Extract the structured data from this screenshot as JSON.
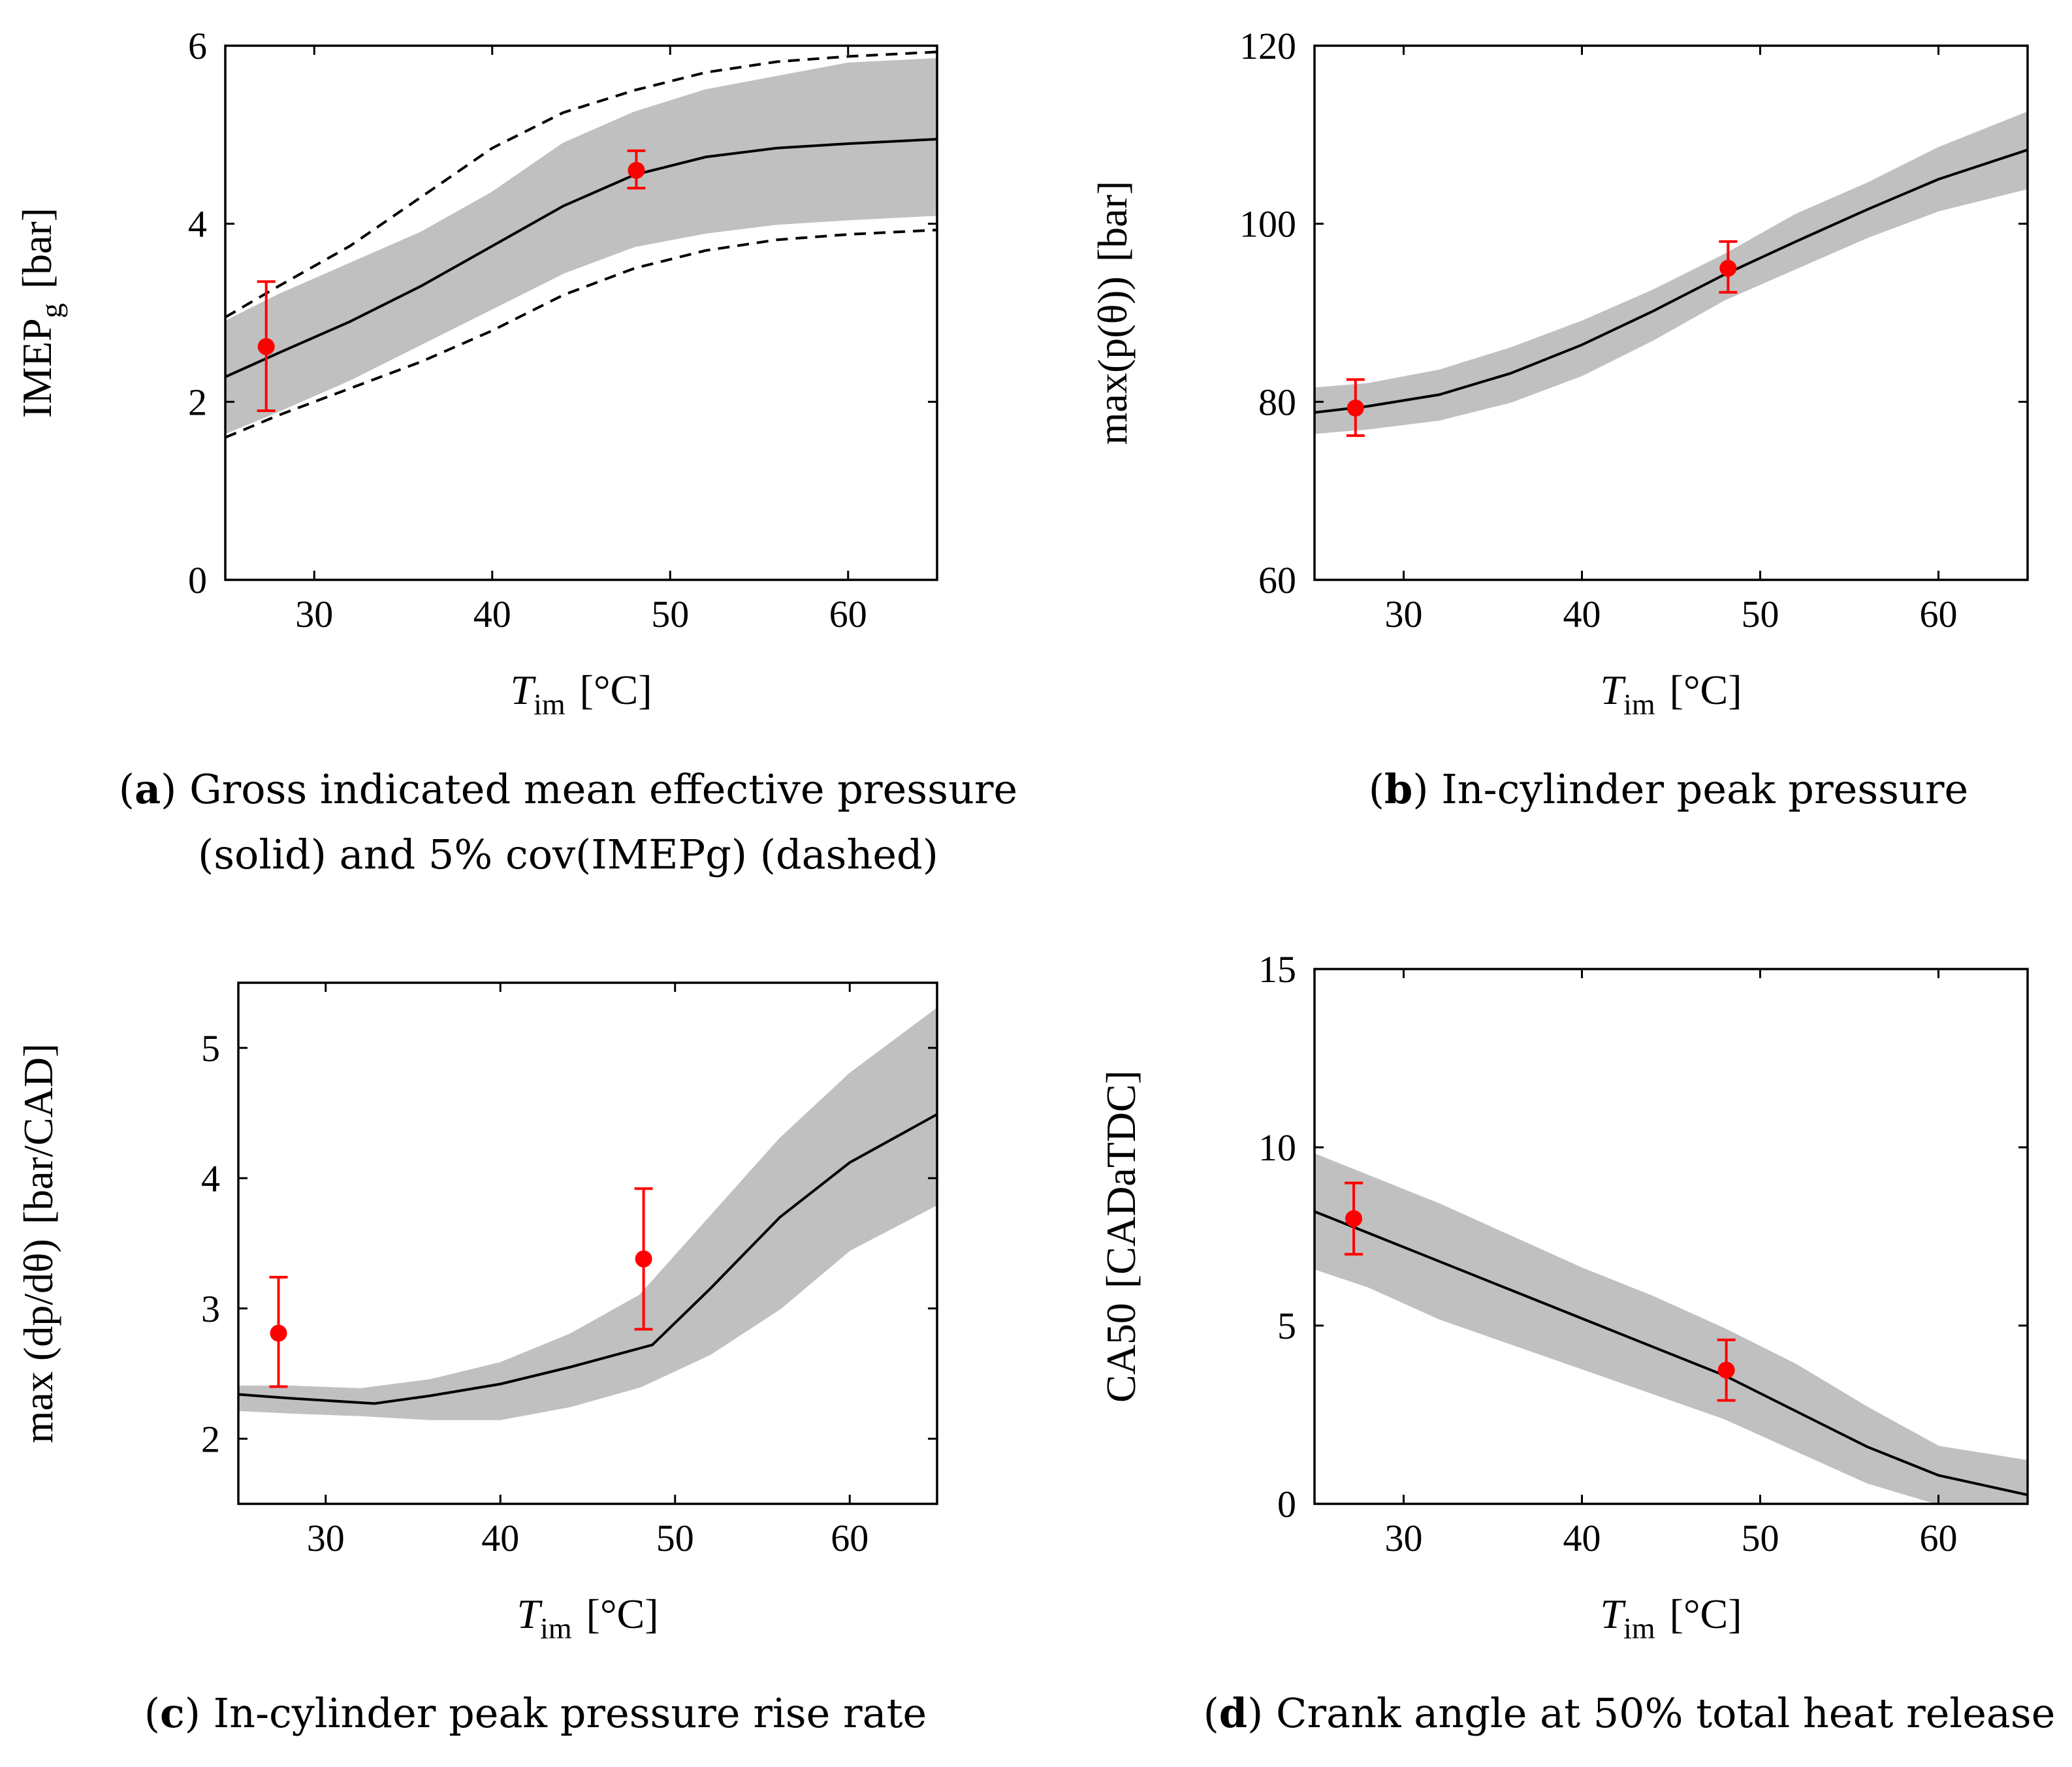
{
  "colors": {
    "band": "#c0c0c0",
    "model": "#000000",
    "measurement": "#ff0000"
  },
  "chart_data": [
    {
      "id": "a",
      "type": "line",
      "caption_letter": "a",
      "caption_lines": [
        "Gross indicated mean effective pressure",
        "(solid) and 5% cov(IMEP_g) (dashed)"
      ],
      "caption_display": [
        "Gross indicated mean effective pressure",
        "(solid) and 5% cov(IMEPg) (dashed)"
      ],
      "xlabel": "T_im [°C]",
      "xlabel_display": {
        "main": "T",
        "sub": "im",
        "unit": "[°C]"
      },
      "ylabel": "IMEP_g [bar]",
      "ylabel_display": {
        "main": "IMEP",
        "sub": "g",
        "unit": "[bar]"
      },
      "xlim": [
        25,
        65
      ],
      "ylim": [
        0,
        6
      ],
      "xticks": [
        30,
        40,
        50,
        60
      ],
      "yticks": [
        0,
        2,
        4,
        6
      ],
      "grid": false,
      "band": {
        "x": [
          25,
          28,
          32,
          36,
          40,
          44,
          48,
          52,
          56,
          60,
          65
        ],
        "lower": [
          1.65,
          1.9,
          2.25,
          2.65,
          3.05,
          3.45,
          3.75,
          3.9,
          4.0,
          4.05,
          4.1
        ],
        "upper": [
          2.9,
          3.2,
          3.55,
          3.9,
          4.35,
          4.9,
          5.25,
          5.5,
          5.65,
          5.8,
          5.85
        ]
      },
      "series": [
        {
          "style": "solid",
          "x": [
            25,
            28,
            32,
            36,
            40,
            44,
            48,
            52,
            56,
            60,
            65
          ],
          "y": [
            2.28,
            2.55,
            2.9,
            3.3,
            3.75,
            4.2,
            4.55,
            4.75,
            4.85,
            4.9,
            4.95
          ]
        },
        {
          "style": "dashed",
          "x": [
            25,
            28,
            32,
            36,
            40,
            44,
            48,
            52,
            56,
            60,
            65
          ],
          "y": [
            2.95,
            3.3,
            3.75,
            4.3,
            4.85,
            5.25,
            5.5,
            5.7,
            5.82,
            5.88,
            5.93
          ]
        },
        {
          "style": "dashed",
          "x": [
            25,
            28,
            32,
            36,
            40,
            44,
            48,
            52,
            56,
            60,
            65
          ],
          "y": [
            1.6,
            1.85,
            2.15,
            2.45,
            2.8,
            3.2,
            3.5,
            3.7,
            3.82,
            3.88,
            3.93
          ]
        }
      ],
      "points": [
        {
          "x": 27.3,
          "y": 2.62,
          "err_low": 1.9,
          "err_high": 3.35
        },
        {
          "x": 48.1,
          "y": 4.6,
          "err_low": 4.4,
          "err_high": 4.82
        }
      ]
    },
    {
      "id": "b",
      "type": "line",
      "caption_letter": "b",
      "caption_lines": [
        "In-cylinder peak pressure"
      ],
      "caption_display": [
        "In-cylinder peak pressure"
      ],
      "xlabel": "T_im [°C]",
      "xlabel_display": {
        "main": "T",
        "sub": "im",
        "unit": "[°C]"
      },
      "ylabel": "max(p(θ)) [bar]",
      "ylabel_display": {
        "main": "max(p(θ))",
        "sub": "",
        "unit": "[bar]"
      },
      "xlim": [
        25,
        65
      ],
      "ylim": [
        60,
        120
      ],
      "xticks": [
        30,
        40,
        50,
        60
      ],
      "yticks": [
        60,
        80,
        100,
        120
      ],
      "grid": false,
      "band": {
        "x": [
          25,
          28,
          32,
          36,
          40,
          44,
          48,
          52,
          56,
          60,
          65
        ],
        "lower": [
          76.5,
          77.0,
          78.0,
          80.0,
          83.0,
          87.0,
          91.5,
          95.0,
          98.5,
          101.5,
          104.0
        ],
        "upper": [
          81.5,
          82.0,
          83.5,
          86.0,
          89.0,
          92.5,
          96.5,
          101.0,
          104.5,
          108.5,
          112.5
        ]
      },
      "series": [
        {
          "style": "solid",
          "x": [
            25,
            28,
            32,
            36,
            40,
            44,
            48,
            52,
            56,
            60,
            65
          ],
          "y": [
            78.8,
            79.5,
            80.8,
            83.2,
            86.4,
            90.2,
            94.3,
            98.0,
            101.6,
            105.0,
            108.3
          ]
        }
      ],
      "points": [
        {
          "x": 27.3,
          "y": 79.3,
          "err_low": 76.2,
          "err_high": 82.5
        },
        {
          "x": 48.2,
          "y": 95.0,
          "err_low": 92.3,
          "err_high": 98.0
        }
      ]
    },
    {
      "id": "c",
      "type": "line",
      "caption_letter": "c",
      "caption_lines": [
        "In-cylinder peak pressure rise rate"
      ],
      "caption_display": [
        "In-cylinder peak pressure rise rate"
      ],
      "xlabel": "T_im [°C]",
      "xlabel_display": {
        "main": "T",
        "sub": "im",
        "unit": "[°C]"
      },
      "ylabel": "max(dp/dθ) [bar/CAD]",
      "ylabel_display": {
        "main": "max (dp/dθ)",
        "sub": "",
        "unit": "[bar/CAD]"
      },
      "xlim": [
        25,
        65
      ],
      "ylim": [
        1.5,
        5.5
      ],
      "xticks": [
        30,
        40,
        50,
        60
      ],
      "yticks": [
        2,
        3,
        4,
        5
      ],
      "grid": false,
      "band": {
        "x": [
          25,
          28,
          32,
          36,
          40,
          44,
          48,
          52,
          56,
          60,
          65
        ],
        "lower": [
          2.22,
          2.2,
          2.18,
          2.15,
          2.15,
          2.25,
          2.4,
          2.65,
          3.0,
          3.45,
          3.8
        ],
        "upper": [
          2.4,
          2.4,
          2.38,
          2.45,
          2.58,
          2.8,
          3.1,
          3.7,
          4.3,
          4.8,
          5.3
        ]
      },
      "series": [
        {
          "style": "solid",
          "x": [
            25,
            28,
            32.8,
            36,
            40,
            44,
            48.7,
            52,
            56,
            60,
            65
          ],
          "y": [
            2.34,
            2.31,
            2.27,
            2.33,
            2.42,
            2.55,
            2.72,
            3.15,
            3.7,
            4.12,
            4.49
          ]
        }
      ],
      "points": [
        {
          "x": 27.3,
          "y": 2.81,
          "err_low": 2.4,
          "err_high": 3.24
        },
        {
          "x": 48.2,
          "y": 3.38,
          "err_low": 2.84,
          "err_high": 3.92
        }
      ]
    },
    {
      "id": "d",
      "type": "line",
      "caption_letter": "d",
      "caption_lines": [
        "Crank angle at 50% total heat release"
      ],
      "caption_display": [
        "Crank angle at 50% total heat release"
      ],
      "xlabel": "T_im [°C]",
      "xlabel_display": {
        "main": "T",
        "sub": "im",
        "unit": "[°C]"
      },
      "ylabel": "CA50 [CADaTDC]",
      "ylabel_display": {
        "main": "CA50",
        "sub": "",
        "unit": "[CADaTDC]"
      },
      "xlim": [
        25,
        65
      ],
      "ylim": [
        0,
        15
      ],
      "xticks": [
        30,
        40,
        50,
        60
      ],
      "yticks": [
        0,
        5,
        10,
        15
      ],
      "grid": false,
      "band": {
        "x": [
          25,
          28,
          32,
          36,
          40,
          44,
          48,
          52,
          56,
          60,
          65
        ],
        "lower": [
          6.6,
          6.1,
          5.2,
          4.5,
          3.8,
          3.1,
          2.4,
          1.5,
          0.6,
          0.0,
          0.0
        ],
        "upper": [
          9.8,
          9.2,
          8.4,
          7.5,
          6.6,
          5.8,
          4.9,
          3.9,
          2.7,
          1.6,
          1.2
        ]
      },
      "series": [
        {
          "style": "solid",
          "x": [
            25,
            28,
            32,
            36,
            40,
            44,
            48,
            52,
            56,
            60,
            65
          ],
          "y": [
            8.2,
            7.6,
            6.8,
            6.0,
            5.2,
            4.4,
            3.6,
            2.6,
            1.6,
            0.8,
            0.25
          ]
        }
      ],
      "points": [
        {
          "x": 27.2,
          "y": 8.0,
          "err_low": 7.0,
          "err_high": 9.0
        },
        {
          "x": 48.1,
          "y": 3.75,
          "err_low": 2.9,
          "err_high": 4.6
        }
      ]
    }
  ]
}
